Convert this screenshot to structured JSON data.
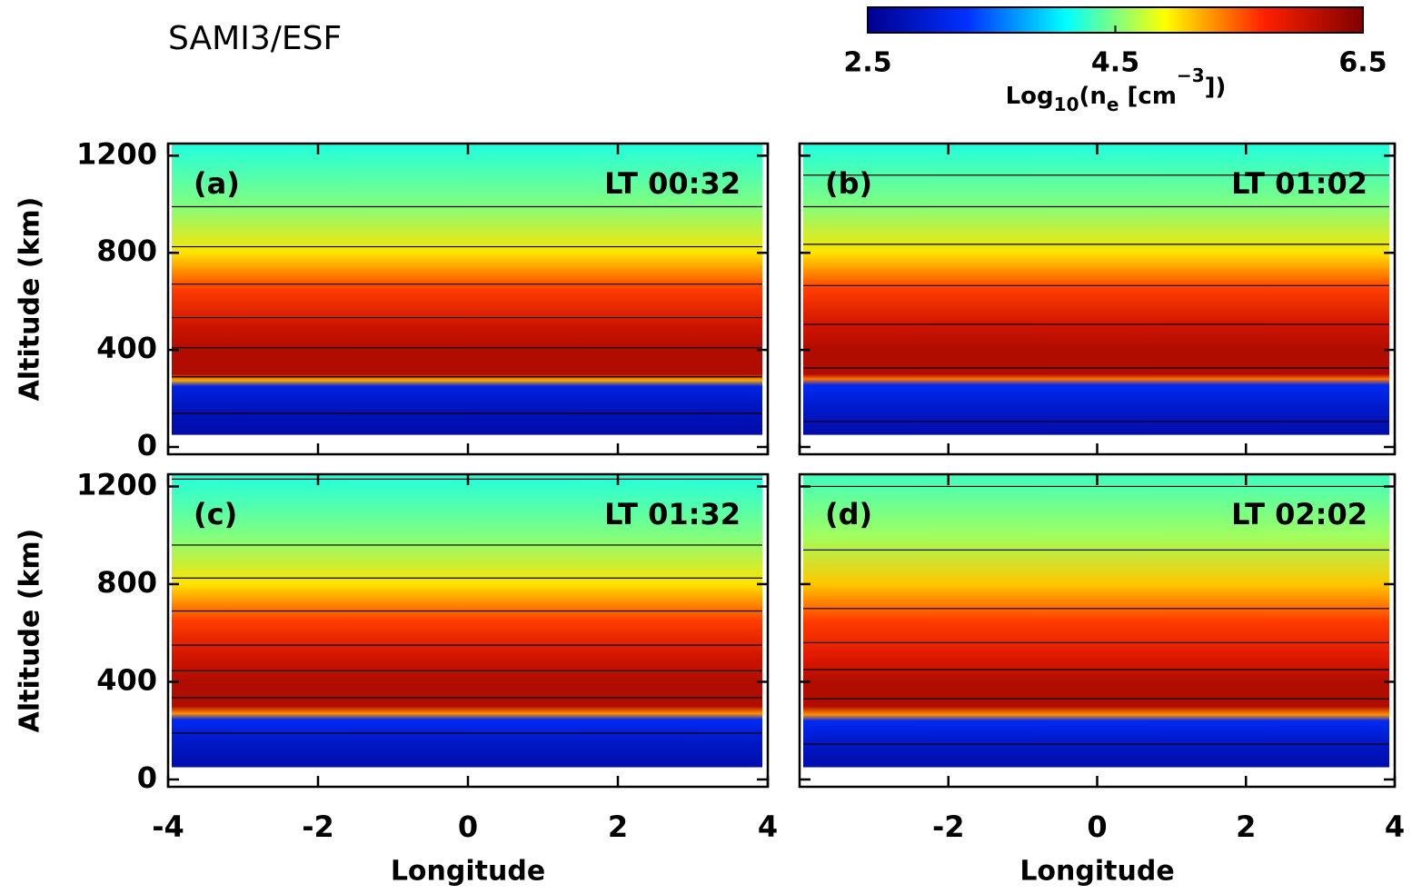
{
  "chart_data": [
    {
      "type": "colorbar",
      "title": "SAMI3/ESF",
      "clim": [
        2.5,
        6.5
      ],
      "ticks": [
        2.5,
        4.5,
        6.5
      ],
      "label_parts": [
        "Log",
        "10",
        "(n",
        "e",
        " [cm",
        "−3",
        "])"
      ],
      "colormap": [
        "#00008f",
        "#0030ff",
        "#00ffff",
        "#ffff00",
        "#ff2000",
        "#800000"
      ]
    },
    {
      "type": "heatmap",
      "panel": "(a)",
      "time": "LT 00:32",
      "xlim": [
        -4,
        4
      ],
      "ylim": [
        -30,
        1250
      ],
      "xticks": [
        -4,
        -2,
        0,
        2,
        4
      ],
      "yticks": [
        0,
        400,
        800,
        1200
      ],
      "ylabel": "Altitude (km)",
      "show_xtick_labels": false,
      "show_ytick_labels": true,
      "profile": {
        "altitudes": [
          1250,
          1000,
          800,
          650,
          500,
          400,
          300,
          275,
          250,
          150,
          50
        ],
        "values": [
          4.2,
          4.5,
          5.0,
          5.6,
          6.0,
          6.2,
          6.2,
          5.2,
          3.1,
          2.8,
          2.7
        ]
      },
      "contours": [
        990,
        825,
        671,
        533,
        409,
        289,
        139
      ]
    },
    {
      "type": "heatmap",
      "panel": "(b)",
      "time": "LT 01:02",
      "xlim": [
        -4,
        4
      ],
      "ylim": [
        -30,
        1250
      ],
      "xticks": [
        -4,
        -2,
        0,
        2,
        4
      ],
      "yticks": [
        0,
        400,
        800,
        1200
      ],
      "show_xtick_labels": false,
      "show_ytick_labels": false,
      "profile": {
        "altitudes": [
          1250,
          1000,
          800,
          650,
          500,
          400,
          300,
          280,
          255,
          150,
          50
        ],
        "values": [
          4.2,
          4.5,
          5.0,
          5.6,
          6.0,
          6.2,
          6.2,
          5.4,
          3.2,
          2.9,
          2.7
        ]
      },
      "contours": [
        1120,
        990,
        835,
        665,
        505,
        325,
        105
      ]
    },
    {
      "type": "heatmap",
      "panel": "(c)",
      "time": "LT 01:32",
      "xlim": [
        -4,
        4
      ],
      "ylim": [
        -30,
        1250
      ],
      "xticks": [
        -4,
        -2,
        0,
        2,
        4
      ],
      "yticks": [
        0,
        400,
        800,
        1200
      ],
      "xlabel": "Longitude",
      "ylabel": "Altitude (km)",
      "show_xtick_labels": true,
      "show_ytick_labels": true,
      "profile": {
        "altitudes": [
          1250,
          1000,
          800,
          650,
          500,
          400,
          300,
          270,
          245,
          150,
          50
        ],
        "values": [
          4.2,
          4.5,
          5.0,
          5.6,
          6.0,
          6.2,
          6.2,
          5.3,
          3.2,
          2.9,
          2.7
        ]
      },
      "contours": [
        1230,
        960,
        825,
        690,
        550,
        445,
        335,
        190
      ]
    },
    {
      "type": "heatmap",
      "panel": "(d)",
      "time": "LT 02:02",
      "xlim": [
        -4,
        4
      ],
      "ylim": [
        -30,
        1250
      ],
      "xticks": [
        -2,
        0,
        2,
        4
      ],
      "yticks": [
        0,
        400,
        800,
        1200
      ],
      "xlabel": "Longitude",
      "show_xtick_labels": true,
      "show_ytick_labels": false,
      "profile": {
        "altitudes": [
          1250,
          1000,
          800,
          650,
          500,
          400,
          300,
          265,
          240,
          150,
          50
        ],
        "values": [
          4.3,
          4.6,
          5.1,
          5.6,
          5.9,
          6.2,
          6.2,
          5.3,
          3.2,
          2.9,
          2.7
        ]
      },
      "contours": [
        1200,
        940,
        700,
        560,
        450,
        330,
        145
      ]
    }
  ]
}
